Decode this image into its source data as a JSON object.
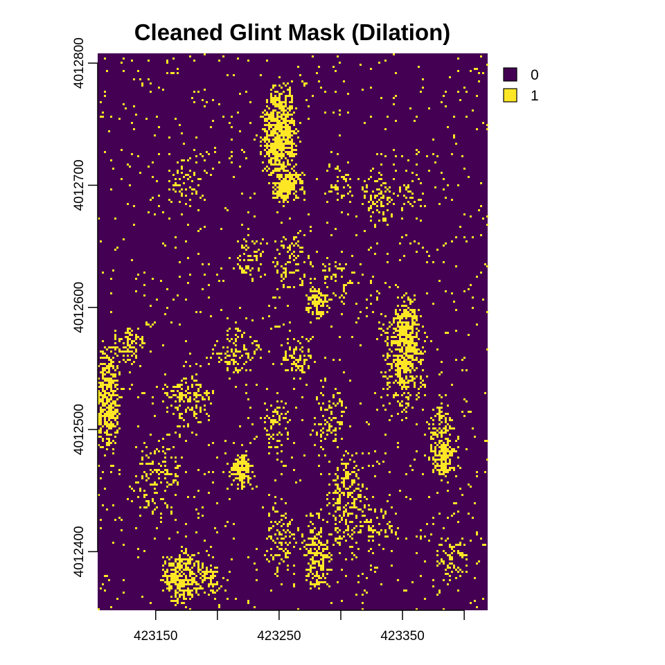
{
  "chart_data": {
    "type": "heatmap",
    "title": "Cleaned Glint Mask (Dilation)",
    "xlabel": "",
    "ylabel": "",
    "xlim": [
      423103,
      423419
    ],
    "ylim": [
      4012352,
      4012808
    ],
    "x_ticks": [
      423150,
      423200,
      423250,
      423300,
      423350,
      423400
    ],
    "x_tick_labels": [
      "423150",
      "",
      "423250",
      "",
      "423350",
      ""
    ],
    "y_ticks": [
      4012400,
      4012500,
      4012600,
      4012700,
      4012800
    ],
    "y_tick_labels": [
      "4012400",
      "4012500",
      "4012600",
      "4012700",
      "4012800"
    ],
    "legend": {
      "position": "top-right",
      "entries": [
        {
          "label": "0",
          "color": "#440154"
        },
        {
          "label": "1",
          "color": "#fde725"
        }
      ]
    },
    "background_color": "#440154",
    "glint_color": "#fde725",
    "glint_regions": [
      {
        "x": 423250,
        "y": 4012740,
        "rx": 14,
        "ry": 42,
        "density": 0.85
      },
      {
        "x": 423256,
        "y": 4012702,
        "rx": 12,
        "ry": 16,
        "density": 0.9
      },
      {
        "x": 423110,
        "y": 4012525,
        "rx": 10,
        "ry": 40,
        "density": 0.75
      },
      {
        "x": 423127,
        "y": 4012570,
        "rx": 14,
        "ry": 14,
        "density": 0.45
      },
      {
        "x": 423352,
        "y": 4012570,
        "rx": 12,
        "ry": 38,
        "density": 0.8
      },
      {
        "x": 423350,
        "y": 4012560,
        "rx": 18,
        "ry": 45,
        "density": 0.35
      },
      {
        "x": 423382,
        "y": 4012478,
        "rx": 10,
        "ry": 16,
        "density": 0.75
      },
      {
        "x": 423380,
        "y": 4012500,
        "rx": 12,
        "ry": 20,
        "density": 0.4
      },
      {
        "x": 423218,
        "y": 4012467,
        "rx": 10,
        "ry": 14,
        "density": 0.8
      },
      {
        "x": 423170,
        "y": 4012380,
        "rx": 16,
        "ry": 22,
        "density": 0.7
      },
      {
        "x": 423190,
        "y": 4012378,
        "rx": 12,
        "ry": 14,
        "density": 0.55
      },
      {
        "x": 423280,
        "y": 4012605,
        "rx": 10,
        "ry": 12,
        "density": 0.7
      },
      {
        "x": 423295,
        "y": 4012620,
        "rx": 12,
        "ry": 18,
        "density": 0.3
      },
      {
        "x": 423355,
        "y": 4012695,
        "rx": 10,
        "ry": 16,
        "density": 0.25
      },
      {
        "x": 423330,
        "y": 4012690,
        "rx": 12,
        "ry": 22,
        "density": 0.35
      },
      {
        "x": 423175,
        "y": 4012705,
        "rx": 14,
        "ry": 20,
        "density": 0.25
      },
      {
        "x": 423215,
        "y": 4012565,
        "rx": 18,
        "ry": 20,
        "density": 0.3
      },
      {
        "x": 423265,
        "y": 4012560,
        "rx": 14,
        "ry": 16,
        "density": 0.35
      },
      {
        "x": 423290,
        "y": 4012510,
        "rx": 12,
        "ry": 28,
        "density": 0.3
      },
      {
        "x": 423248,
        "y": 4012500,
        "rx": 10,
        "ry": 24,
        "density": 0.3
      },
      {
        "x": 423305,
        "y": 4012440,
        "rx": 14,
        "ry": 40,
        "density": 0.4
      },
      {
        "x": 423280,
        "y": 4012400,
        "rx": 12,
        "ry": 30,
        "density": 0.5
      },
      {
        "x": 423250,
        "y": 4012410,
        "rx": 14,
        "ry": 26,
        "density": 0.35
      },
      {
        "x": 423330,
        "y": 4012420,
        "rx": 14,
        "ry": 20,
        "density": 0.25
      },
      {
        "x": 423390,
        "y": 4012395,
        "rx": 14,
        "ry": 18,
        "density": 0.35
      },
      {
        "x": 423150,
        "y": 4012460,
        "rx": 20,
        "ry": 30,
        "density": 0.3
      },
      {
        "x": 423175,
        "y": 4012525,
        "rx": 20,
        "ry": 20,
        "density": 0.35
      },
      {
        "x": 423260,
        "y": 4012640,
        "rx": 16,
        "ry": 22,
        "density": 0.25
      },
      {
        "x": 423225,
        "y": 4012640,
        "rx": 12,
        "ry": 18,
        "density": 0.3
      },
      {
        "x": 423300,
        "y": 4012700,
        "rx": 10,
        "ry": 14,
        "density": 0.3
      }
    ]
  }
}
